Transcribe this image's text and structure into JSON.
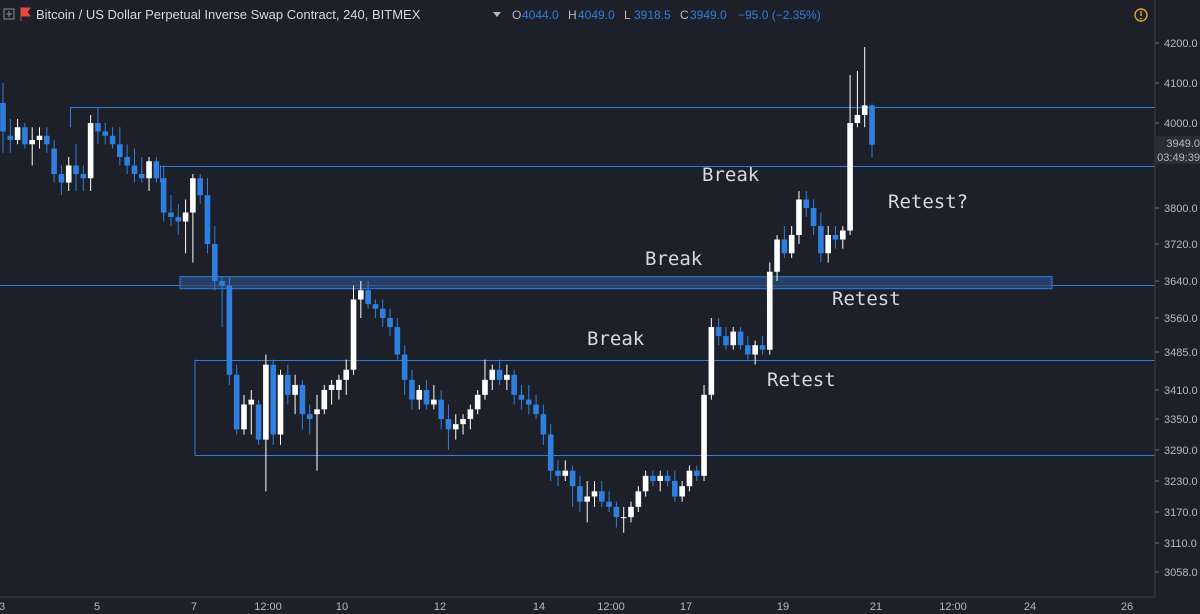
{
  "header": {
    "title": "Bitcoin / US Dollar Perpetual Inverse Swap Contract, 240, BITMEX",
    "ohlc": [
      {
        "k": "O",
        "v": "4044.0"
      },
      {
        "k": "H",
        "v": "4049.0"
      },
      {
        "k": "L",
        "v": "3918.5"
      },
      {
        "k": "C",
        "v": "3949.0"
      }
    ],
    "change": "−95.0 (−2.35%)"
  },
  "price_label": "3949.0",
  "countdown": "03:49:39",
  "chart_data": {
    "type": "candlestick",
    "y_axis_ticks": [
      4200.0,
      4100.0,
      4000.0,
      3800.0,
      3720.0,
      3640.0,
      3560.0,
      3485.0,
      3410.0,
      3350.0,
      3290.0,
      3230.0,
      3170.0,
      3110.0,
      3058.0
    ],
    "y_axis_labels": [
      "4200.0",
      "4100.0",
      "4000.0",
      "3800.0",
      "3720.0",
      "3640.0",
      "3560.0",
      "3485.0",
      "3410.0",
      "3350.0",
      "3290.0",
      "3230.0",
      "3170.0",
      "3110.0",
      "3058.0"
    ],
    "x_axis_labels": [
      "3",
      "5",
      "7",
      "12:00",
      "10",
      "12",
      "14",
      "12:00",
      "17",
      "19",
      "21",
      "12:00",
      "24",
      "26"
    ],
    "levels": [
      4040,
      3900,
      3632,
      3470,
      3280
    ],
    "zone": [
      3632,
      3645
    ],
    "annotations": [
      "Break",
      "Retest?",
      "Break",
      "Retest",
      "Break",
      "Retest"
    ],
    "colors": {
      "up": "#ffffff",
      "down": "#2f7fe0",
      "level": "#2f7fe0",
      "background": "#1e2029"
    },
    "candles": [
      {
        "o": 4050,
        "h": 4100,
        "l": 3930,
        "c": 3980
      },
      {
        "o": 3970,
        "h": 4010,
        "l": 3930,
        "c": 3960
      },
      {
        "o": 3960,
        "h": 4010,
        "l": 3950,
        "c": 3990
      },
      {
        "o": 3990,
        "h": 4000,
        "l": 3940,
        "c": 3950
      },
      {
        "o": 3950,
        "h": 3990,
        "l": 3900,
        "c": 3960
      },
      {
        "o": 3960,
        "h": 3990,
        "l": 3940,
        "c": 3970
      },
      {
        "o": 3970,
        "h": 3990,
        "l": 3930,
        "c": 3950
      },
      {
        "o": 3940,
        "h": 3960,
        "l": 3860,
        "c": 3880
      },
      {
        "o": 3880,
        "h": 3900,
        "l": 3830,
        "c": 3860
      },
      {
        "o": 3860,
        "h": 3920,
        "l": 3840,
        "c": 3900
      },
      {
        "o": 3900,
        "h": 3950,
        "l": 3840,
        "c": 3880
      },
      {
        "o": 3880,
        "h": 3900,
        "l": 3840,
        "c": 3870
      },
      {
        "o": 3870,
        "h": 4020,
        "l": 3840,
        "c": 4000
      },
      {
        "o": 4000,
        "h": 4040,
        "l": 3950,
        "c": 3980
      },
      {
        "o": 3980,
        "h": 4000,
        "l": 3950,
        "c": 3970
      },
      {
        "o": 3970,
        "h": 3990,
        "l": 3940,
        "c": 3950
      },
      {
        "o": 3950,
        "h": 3990,
        "l": 3900,
        "c": 3920
      },
      {
        "o": 3920,
        "h": 3950,
        "l": 3880,
        "c": 3900
      },
      {
        "o": 3900,
        "h": 3940,
        "l": 3860,
        "c": 3880
      },
      {
        "o": 3880,
        "h": 3920,
        "l": 3860,
        "c": 3870
      },
      {
        "o": 3870,
        "h": 3920,
        "l": 3840,
        "c": 3910
      },
      {
        "o": 3910,
        "h": 3920,
        "l": 3860,
        "c": 3870
      },
      {
        "o": 3870,
        "h": 3900,
        "l": 3770,
        "c": 3790
      },
      {
        "o": 3790,
        "h": 3830,
        "l": 3760,
        "c": 3780
      },
      {
        "o": 3780,
        "h": 3810,
        "l": 3740,
        "c": 3770
      },
      {
        "o": 3770,
        "h": 3820,
        "l": 3700,
        "c": 3790
      },
      {
        "o": 3790,
        "h": 3880,
        "l": 3680,
        "c": 3870
      },
      {
        "o": 3870,
        "h": 3880,
        "l": 3810,
        "c": 3830
      },
      {
        "o": 3830,
        "h": 3870,
        "l": 3700,
        "c": 3720
      },
      {
        "o": 3720,
        "h": 3760,
        "l": 3620,
        "c": 3640
      },
      {
        "o": 3640,
        "h": 3650,
        "l": 3540,
        "c": 3630
      },
      {
        "o": 3630,
        "h": 3650,
        "l": 3420,
        "c": 3440
      },
      {
        "o": 3440,
        "h": 3460,
        "l": 3320,
        "c": 3330
      },
      {
        "o": 3330,
        "h": 3400,
        "l": 3320,
        "c": 3380
      },
      {
        "o": 3380,
        "h": 3410,
        "l": 3320,
        "c": 3390
      },
      {
        "o": 3380,
        "h": 3390,
        "l": 3300,
        "c": 3310
      },
      {
        "o": 3310,
        "h": 3480,
        "l": 3210,
        "c": 3460
      },
      {
        "o": 3460,
        "h": 3470,
        "l": 3300,
        "c": 3320
      },
      {
        "o": 3320,
        "h": 3450,
        "l": 3300,
        "c": 3440
      },
      {
        "o": 3440,
        "h": 3460,
        "l": 3380,
        "c": 3400
      },
      {
        "o": 3400,
        "h": 3440,
        "l": 3360,
        "c": 3420
      },
      {
        "o": 3420,
        "h": 3430,
        "l": 3330,
        "c": 3360
      },
      {
        "o": 3360,
        "h": 3380,
        "l": 3320,
        "c": 3350
      },
      {
        "o": 3360,
        "h": 3400,
        "l": 3250,
        "c": 3370
      },
      {
        "o": 3370,
        "h": 3420,
        "l": 3360,
        "c": 3410
      },
      {
        "o": 3410,
        "h": 3430,
        "l": 3380,
        "c": 3420
      },
      {
        "o": 3410,
        "h": 3440,
        "l": 3390,
        "c": 3430
      },
      {
        "o": 3430,
        "h": 3470,
        "l": 3400,
        "c": 3450
      },
      {
        "o": 3450,
        "h": 3630,
        "l": 3440,
        "c": 3600
      },
      {
        "o": 3600,
        "h": 3640,
        "l": 3560,
        "c": 3620
      },
      {
        "o": 3620,
        "h": 3640,
        "l": 3580,
        "c": 3590
      },
      {
        "o": 3590,
        "h": 3600,
        "l": 3560,
        "c": 3580
      },
      {
        "o": 3580,
        "h": 3600,
        "l": 3540,
        "c": 3560
      },
      {
        "o": 3560,
        "h": 3580,
        "l": 3520,
        "c": 3540
      },
      {
        "o": 3540,
        "h": 3560,
        "l": 3470,
        "c": 3480
      },
      {
        "o": 3480,
        "h": 3500,
        "l": 3400,
        "c": 3430
      },
      {
        "o": 3430,
        "h": 3450,
        "l": 3370,
        "c": 3390
      },
      {
        "o": 3390,
        "h": 3420,
        "l": 3370,
        "c": 3410
      },
      {
        "o": 3410,
        "h": 3430,
        "l": 3370,
        "c": 3380
      },
      {
        "o": 3380,
        "h": 3420,
        "l": 3370,
        "c": 3390
      },
      {
        "o": 3390,
        "h": 3410,
        "l": 3330,
        "c": 3350
      },
      {
        "o": 3350,
        "h": 3380,
        "l": 3290,
        "c": 3330
      },
      {
        "o": 3330,
        "h": 3360,
        "l": 3310,
        "c": 3340
      },
      {
        "o": 3340,
        "h": 3360,
        "l": 3320,
        "c": 3350
      },
      {
        "o": 3350,
        "h": 3380,
        "l": 3330,
        "c": 3370
      },
      {
        "o": 3370,
        "h": 3410,
        "l": 3360,
        "c": 3400
      },
      {
        "o": 3400,
        "h": 3470,
        "l": 3390,
        "c": 3430
      },
      {
        "o": 3430,
        "h": 3460,
        "l": 3410,
        "c": 3450
      },
      {
        "o": 3450,
        "h": 3470,
        "l": 3420,
        "c": 3430
      },
      {
        "o": 3430,
        "h": 3460,
        "l": 3410,
        "c": 3440
      },
      {
        "o": 3440,
        "h": 3450,
        "l": 3380,
        "c": 3400
      },
      {
        "o": 3400,
        "h": 3420,
        "l": 3370,
        "c": 3390
      },
      {
        "o": 3390,
        "h": 3420,
        "l": 3360,
        "c": 3380
      },
      {
        "o": 3380,
        "h": 3400,
        "l": 3350,
        "c": 3360
      },
      {
        "o": 3360,
        "h": 3380,
        "l": 3300,
        "c": 3320
      },
      {
        "o": 3320,
        "h": 3340,
        "l": 3230,
        "c": 3250
      },
      {
        "o": 3250,
        "h": 3270,
        "l": 3220,
        "c": 3240
      },
      {
        "o": 3240,
        "h": 3270,
        "l": 3230,
        "c": 3250
      },
      {
        "o": 3250,
        "h": 3260,
        "l": 3180,
        "c": 3220
      },
      {
        "o": 3220,
        "h": 3240,
        "l": 3170,
        "c": 3190
      },
      {
        "o": 3190,
        "h": 3230,
        "l": 3150,
        "c": 3200
      },
      {
        "o": 3200,
        "h": 3230,
        "l": 3180,
        "c": 3210
      },
      {
        "o": 3210,
        "h": 3230,
        "l": 3180,
        "c": 3190
      },
      {
        "o": 3190,
        "h": 3210,
        "l": 3170,
        "c": 3180
      },
      {
        "o": 3180,
        "h": 3190,
        "l": 3140,
        "c": 3160
      },
      {
        "o": 3160,
        "h": 3180,
        "l": 3130,
        "c": 3160
      },
      {
        "o": 3160,
        "h": 3190,
        "l": 3150,
        "c": 3180
      },
      {
        "o": 3180,
        "h": 3220,
        "l": 3170,
        "c": 3210
      },
      {
        "o": 3210,
        "h": 3250,
        "l": 3200,
        "c": 3240
      },
      {
        "o": 3240,
        "h": 3250,
        "l": 3220,
        "c": 3230
      },
      {
        "o": 3230,
        "h": 3250,
        "l": 3210,
        "c": 3240
      },
      {
        "o": 3240,
        "h": 3250,
        "l": 3220,
        "c": 3230
      },
      {
        "o": 3230,
        "h": 3250,
        "l": 3190,
        "c": 3200
      },
      {
        "o": 3200,
        "h": 3230,
        "l": 3190,
        "c": 3220
      },
      {
        "o": 3220,
        "h": 3260,
        "l": 3210,
        "c": 3250
      },
      {
        "o": 3250,
        "h": 3260,
        "l": 3230,
        "c": 3240
      },
      {
        "o": 3240,
        "h": 3420,
        "l": 3230,
        "c": 3400
      },
      {
        "o": 3400,
        "h": 3560,
        "l": 3390,
        "c": 3540
      },
      {
        "o": 3540,
        "h": 3560,
        "l": 3500,
        "c": 3520
      },
      {
        "o": 3520,
        "h": 3540,
        "l": 3490,
        "c": 3500
      },
      {
        "o": 3500,
        "h": 3540,
        "l": 3490,
        "c": 3530
      },
      {
        "o": 3530,
        "h": 3540,
        "l": 3490,
        "c": 3500
      },
      {
        "o": 3500,
        "h": 3520,
        "l": 3470,
        "c": 3480
      },
      {
        "o": 3480,
        "h": 3510,
        "l": 3460,
        "c": 3500
      },
      {
        "o": 3500,
        "h": 3520,
        "l": 3480,
        "c": 3490
      },
      {
        "o": 3490,
        "h": 3680,
        "l": 3480,
        "c": 3660
      },
      {
        "o": 3660,
        "h": 3740,
        "l": 3640,
        "c": 3730
      },
      {
        "o": 3730,
        "h": 3760,
        "l": 3690,
        "c": 3700
      },
      {
        "o": 3700,
        "h": 3760,
        "l": 3690,
        "c": 3740
      },
      {
        "o": 3740,
        "h": 3840,
        "l": 3720,
        "c": 3820
      },
      {
        "o": 3820,
        "h": 3840,
        "l": 3780,
        "c": 3800
      },
      {
        "o": 3800,
        "h": 3820,
        "l": 3740,
        "c": 3760
      },
      {
        "o": 3760,
        "h": 3790,
        "l": 3680,
        "c": 3700
      },
      {
        "o": 3700,
        "h": 3760,
        "l": 3680,
        "c": 3740
      },
      {
        "o": 3740,
        "h": 3760,
        "l": 3710,
        "c": 3730
      },
      {
        "o": 3730,
        "h": 3760,
        "l": 3710,
        "c": 3750
      },
      {
        "o": 3750,
        "h": 4120,
        "l": 3740,
        "c": 4000
      },
      {
        "o": 4000,
        "h": 4130,
        "l": 3990,
        "c": 4020
      },
      {
        "o": 4020,
        "h": 4190,
        "l": 3990,
        "c": 4044
      },
      {
        "o": 4044,
        "h": 4049,
        "l": 3918.5,
        "c": 3949
      }
    ]
  }
}
